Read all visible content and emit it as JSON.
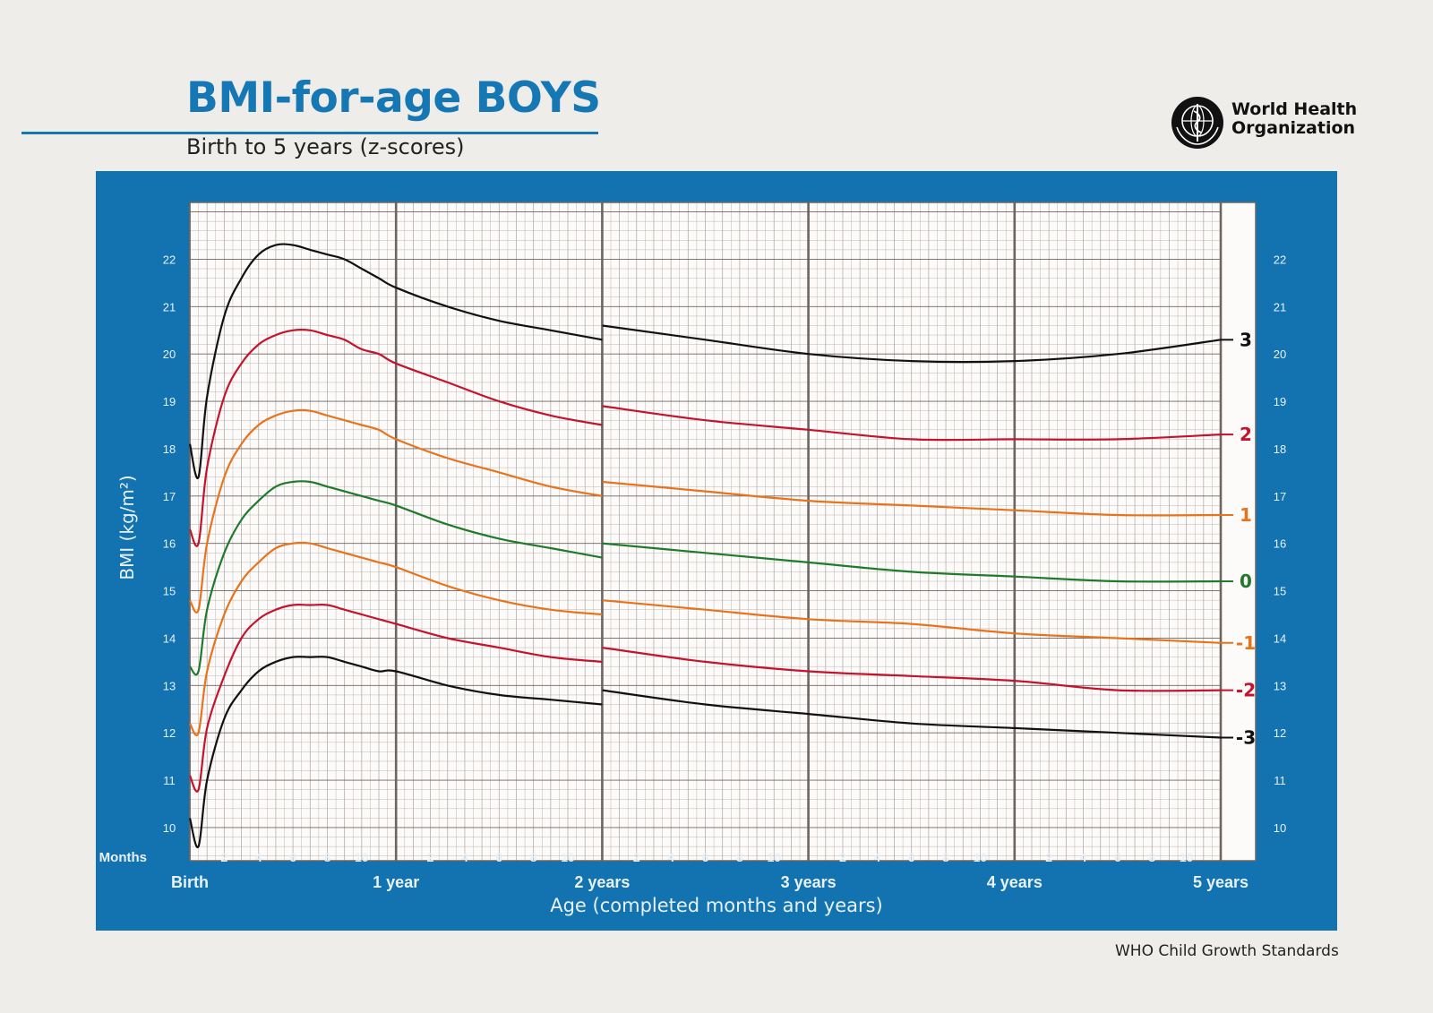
{
  "header": {
    "title": "BMI-for-age BOYS",
    "subtitle": "Birth to 5 years (z-scores)"
  },
  "logo": {
    "name": "who-emblem-icon",
    "line1": "World Health",
    "line2": "Organization"
  },
  "footer": {
    "note": "WHO Child Growth Standards"
  },
  "colors": {
    "panel": "#1273b0",
    "accent_blue": "#1577b4",
    "grid_bg": "#fdfbf9",
    "grid_minor": "#b3aeab",
    "grid_major": "#6e6461",
    "z3": "#111111",
    "z2": "#c4132d",
    "z1": "#e8731d",
    "z0": "#1f7a2b"
  },
  "chart_data": {
    "type": "line",
    "ylabel": "BMI (kg/m²)",
    "xlabel": "Age (completed months and years)",
    "months_label": "Months",
    "xlim": [
      0,
      60
    ],
    "ylim": [
      9.3,
      23.2
    ],
    "y_ticks": [
      10,
      11,
      12,
      13,
      14,
      15,
      16,
      17,
      18,
      19,
      20,
      21,
      22
    ],
    "month_ticks": [
      "2",
      "4",
      "6",
      "8",
      "10"
    ],
    "year_labels": [
      "Birth",
      "1 year",
      "2 years",
      "3 years",
      "4 years",
      "5 years"
    ],
    "grid": true,
    "segments_break_at": 24,
    "series": [
      {
        "name": "3",
        "color": "#111111",
        "points": [
          [
            0,
            18.1
          ],
          [
            0.5,
            17.4
          ],
          [
            1,
            19.1
          ],
          [
            2,
            20.8
          ],
          [
            3,
            21.6
          ],
          [
            4,
            22.1
          ],
          [
            5,
            22.3
          ],
          [
            6,
            22.3
          ],
          [
            7,
            22.2
          ],
          [
            8,
            22.1
          ],
          [
            9,
            22.0
          ],
          [
            10,
            21.8
          ],
          [
            11,
            21.6
          ],
          [
            12,
            21.4
          ],
          [
            15,
            21.0
          ],
          [
            18,
            20.7
          ],
          [
            21,
            20.5
          ],
          [
            24,
            20.3
          ],
          [
            24.01,
            20.6
          ],
          [
            30,
            20.3
          ],
          [
            36,
            20.0
          ],
          [
            42,
            19.85
          ],
          [
            48,
            19.85
          ],
          [
            54,
            20.0
          ],
          [
            60,
            20.3
          ]
        ]
      },
      {
        "name": "2",
        "color": "#c4132d",
        "points": [
          [
            0,
            16.3
          ],
          [
            0.5,
            16.0
          ],
          [
            1,
            17.6
          ],
          [
            2,
            19.1
          ],
          [
            3,
            19.8
          ],
          [
            4,
            20.2
          ],
          [
            5,
            20.4
          ],
          [
            6,
            20.5
          ],
          [
            7,
            20.5
          ],
          [
            8,
            20.4
          ],
          [
            9,
            20.3
          ],
          [
            10,
            20.1
          ],
          [
            11,
            20.0
          ],
          [
            12,
            19.8
          ],
          [
            15,
            19.4
          ],
          [
            18,
            19.0
          ],
          [
            21,
            18.7
          ],
          [
            24,
            18.5
          ],
          [
            24.01,
            18.9
          ],
          [
            30,
            18.6
          ],
          [
            36,
            18.4
          ],
          [
            42,
            18.2
          ],
          [
            48,
            18.2
          ],
          [
            54,
            18.2
          ],
          [
            60,
            18.3
          ]
        ]
      },
      {
        "name": "1",
        "color": "#e8731d",
        "points": [
          [
            0,
            14.8
          ],
          [
            0.5,
            14.6
          ],
          [
            1,
            16.0
          ],
          [
            2,
            17.4
          ],
          [
            3,
            18.1
          ],
          [
            4,
            18.5
          ],
          [
            5,
            18.7
          ],
          [
            6,
            18.8
          ],
          [
            7,
            18.8
          ],
          [
            8,
            18.7
          ],
          [
            9,
            18.6
          ],
          [
            10,
            18.5
          ],
          [
            11,
            18.4
          ],
          [
            12,
            18.2
          ],
          [
            15,
            17.8
          ],
          [
            18,
            17.5
          ],
          [
            21,
            17.2
          ],
          [
            24,
            17.0
          ],
          [
            24.01,
            17.3
          ],
          [
            30,
            17.1
          ],
          [
            36,
            16.9
          ],
          [
            42,
            16.8
          ],
          [
            48,
            16.7
          ],
          [
            54,
            16.6
          ],
          [
            60,
            16.6
          ]
        ]
      },
      {
        "name": "0",
        "color": "#1f7a2b",
        "points": [
          [
            0,
            13.4
          ],
          [
            0.5,
            13.3
          ],
          [
            1,
            14.6
          ],
          [
            2,
            15.8
          ],
          [
            3,
            16.5
          ],
          [
            4,
            16.9
          ],
          [
            5,
            17.2
          ],
          [
            6,
            17.3
          ],
          [
            7,
            17.3
          ],
          [
            8,
            17.2
          ],
          [
            9,
            17.1
          ],
          [
            10,
            17.0
          ],
          [
            11,
            16.9
          ],
          [
            12,
            16.8
          ],
          [
            15,
            16.4
          ],
          [
            18,
            16.1
          ],
          [
            21,
            15.9
          ],
          [
            24,
            15.7
          ],
          [
            24.01,
            16.0
          ],
          [
            30,
            15.8
          ],
          [
            36,
            15.6
          ],
          [
            42,
            15.4
          ],
          [
            48,
            15.3
          ],
          [
            54,
            15.2
          ],
          [
            60,
            15.2
          ]
        ]
      },
      {
        "name": "-1",
        "color": "#e8731d",
        "points": [
          [
            0,
            12.2
          ],
          [
            0.5,
            12.0
          ],
          [
            1,
            13.3
          ],
          [
            2,
            14.5
          ],
          [
            3,
            15.2
          ],
          [
            4,
            15.6
          ],
          [
            5,
            15.9
          ],
          [
            6,
            16.0
          ],
          [
            7,
            16.0
          ],
          [
            8,
            15.9
          ],
          [
            9,
            15.8
          ],
          [
            10,
            15.7
          ],
          [
            11,
            15.6
          ],
          [
            12,
            15.5
          ],
          [
            15,
            15.1
          ],
          [
            18,
            14.8
          ],
          [
            21,
            14.6
          ],
          [
            24,
            14.5
          ],
          [
            24.01,
            14.8
          ],
          [
            30,
            14.6
          ],
          [
            36,
            14.4
          ],
          [
            42,
            14.3
          ],
          [
            48,
            14.1
          ],
          [
            54,
            14.0
          ],
          [
            60,
            13.9
          ]
        ]
      },
      {
        "name": "-2",
        "color": "#c4132d",
        "points": [
          [
            0,
            11.1
          ],
          [
            0.5,
            10.8
          ],
          [
            1,
            12.1
          ],
          [
            2,
            13.2
          ],
          [
            3,
            14.0
          ],
          [
            4,
            14.4
          ],
          [
            5,
            14.6
          ],
          [
            6,
            14.7
          ],
          [
            7,
            14.7
          ],
          [
            8,
            14.7
          ],
          [
            9,
            14.6
          ],
          [
            10,
            14.5
          ],
          [
            11,
            14.4
          ],
          [
            12,
            14.3
          ],
          [
            15,
            14.0
          ],
          [
            18,
            13.8
          ],
          [
            21,
            13.6
          ],
          [
            24,
            13.5
          ],
          [
            24.01,
            13.8
          ],
          [
            30,
            13.5
          ],
          [
            36,
            13.3
          ],
          [
            42,
            13.2
          ],
          [
            48,
            13.1
          ],
          [
            54,
            12.9
          ],
          [
            60,
            12.9
          ]
        ]
      },
      {
        "name": "-3",
        "color": "#111111",
        "points": [
          [
            0,
            10.2
          ],
          [
            0.5,
            9.6
          ],
          [
            1,
            11.0
          ],
          [
            2,
            12.3
          ],
          [
            3,
            12.9
          ],
          [
            4,
            13.3
          ],
          [
            5,
            13.5
          ],
          [
            6,
            13.6
          ],
          [
            7,
            13.6
          ],
          [
            8,
            13.6
          ],
          [
            9,
            13.5
          ],
          [
            10,
            13.4
          ],
          [
            11,
            13.3
          ],
          [
            12,
            13.3
          ],
          [
            15,
            13.0
          ],
          [
            18,
            12.8
          ],
          [
            21,
            12.7
          ],
          [
            24,
            12.6
          ],
          [
            24.01,
            12.9
          ],
          [
            30,
            12.6
          ],
          [
            36,
            12.4
          ],
          [
            42,
            12.2
          ],
          [
            48,
            12.1
          ],
          [
            54,
            12.0
          ],
          [
            60,
            11.9
          ]
        ]
      }
    ]
  }
}
